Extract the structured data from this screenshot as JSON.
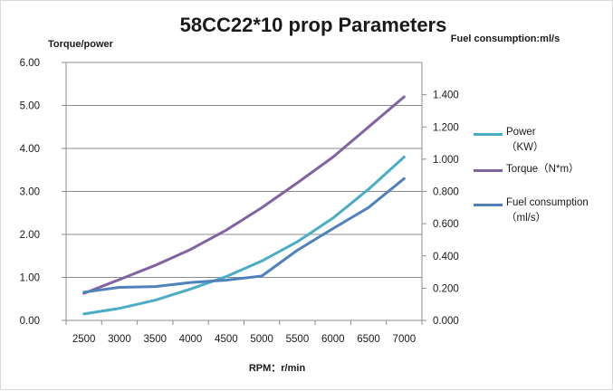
{
  "chart_data": {
    "type": "line",
    "title": "58CC22*10 prop Parameters",
    "xlabel": "RPM：r/min",
    "ylabel_left": "Torque/power",
    "ylabel_right": "Fuel consumption:ml/s",
    "ylim_left": [
      0,
      6
    ],
    "ylim_right": [
      0,
      1.6
    ],
    "yticks_left": [
      "0.00",
      "1.00",
      "2.00",
      "3.00",
      "4.00",
      "5.00",
      "6.00"
    ],
    "yticks_right": [
      "0.000",
      "0.200",
      "0.400",
      "0.600",
      "0.800",
      "1.000",
      "1.200",
      "1.400"
    ],
    "categories": [
      "2500",
      "3000",
      "3500",
      "4000",
      "4500",
      "5000",
      "5500",
      "6000",
      "6500",
      "7000"
    ],
    "grid": "horizontal",
    "legend_position": "right",
    "series": [
      {
        "name": "Power\n（KW）",
        "axis": "left",
        "color": "#4BACC6",
        "values": [
          0.15,
          0.28,
          0.47,
          0.73,
          1.02,
          1.38,
          1.83,
          2.38,
          3.05,
          3.8
        ]
      },
      {
        "name": "Torque（N*m）",
        "axis": "left",
        "color": "#8064A2",
        "values": [
          0.63,
          0.95,
          1.28,
          1.65,
          2.1,
          2.62,
          3.2,
          3.8,
          4.5,
          5.2
        ]
      },
      {
        "name": "Fuel consumption\n（ml/s）",
        "axis": "right",
        "color": "#4F81BD",
        "values": [
          0.175,
          0.205,
          0.21,
          0.235,
          0.25,
          0.275,
          0.435,
          0.57,
          0.7,
          0.88
        ]
      }
    ]
  }
}
